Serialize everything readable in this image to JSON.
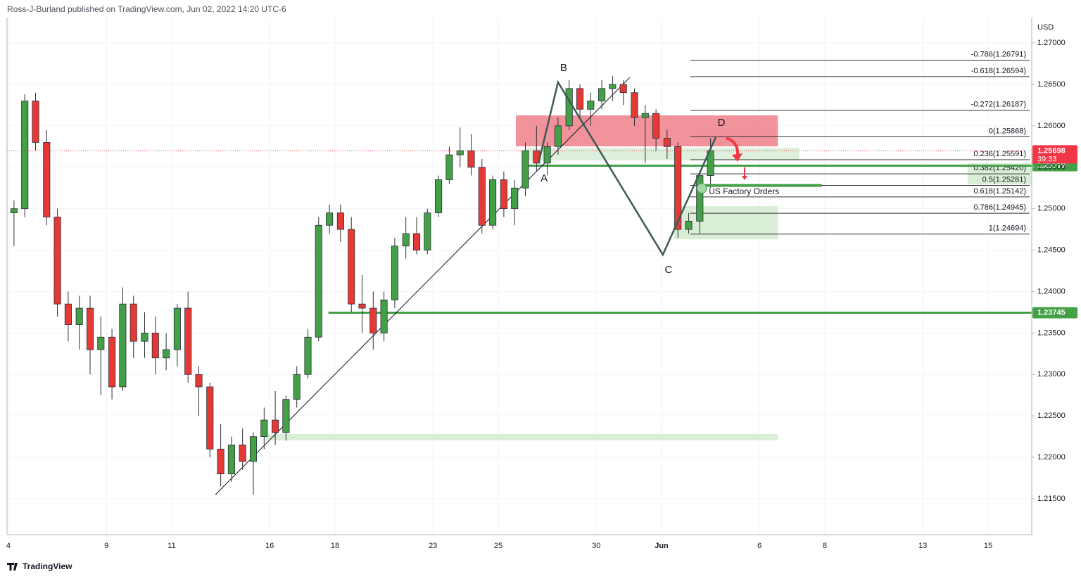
{
  "chart_data": {
    "type": "candlestick",
    "header": "Ross-J-Burland published on TradingView.com, Jun 02, 2022 14:20 UTC-6",
    "currency": "USD",
    "footer": "TradingView",
    "up_color": "#43a047",
    "down_color": "#e53935",
    "x": [
      0.17,
      0.5,
      0.83,
      1.17,
      1.5,
      1.83,
      2.17,
      2.5,
      2.83,
      3.17,
      3.5,
      3.83,
      4.17,
      4.5,
      4.83,
      5.17,
      5.5,
      5.83,
      6.17,
      6.5,
      6.83,
      7.17,
      7.5,
      7.83,
      8.17,
      8.5,
      8.83,
      9.17,
      9.5,
      9.83,
      10.17,
      10.5,
      10.83,
      11.17,
      11.5,
      11.83,
      12.17,
      12.5,
      12.83,
      13.17,
      13.5,
      13.83,
      14.17,
      14.5,
      14.83,
      15.17,
      15.5,
      15.83,
      16.17,
      16.5,
      16.83,
      17.17,
      17.5,
      17.83,
      18.17,
      18.5,
      18.83,
      19.17,
      19.5,
      19.83,
      20.17,
      20.5,
      20.83,
      21.17,
      21.5
    ],
    "candles": [
      [
        1.2495,
        1.251,
        1.2455,
        1.25
      ],
      [
        1.25,
        1.2638,
        1.249,
        1.263
      ],
      [
        1.263,
        1.264,
        1.257,
        1.258
      ],
      [
        1.258,
        1.2595,
        1.248,
        1.249
      ],
      [
        1.249,
        1.25,
        1.237,
        1.2385
      ],
      [
        1.2385,
        1.24,
        1.234,
        1.236
      ],
      [
        1.236,
        1.2395,
        1.233,
        1.238
      ],
      [
        1.238,
        1.2395,
        1.23,
        1.233
      ],
      [
        1.233,
        1.237,
        1.2275,
        1.2345
      ],
      [
        1.2345,
        1.2355,
        1.227,
        1.2285
      ],
      [
        1.2285,
        1.2405,
        1.228,
        1.2385
      ],
      [
        1.2385,
        1.2395,
        1.232,
        1.234
      ],
      [
        1.234,
        1.2375,
        1.232,
        1.235
      ],
      [
        1.235,
        1.237,
        1.23,
        1.232
      ],
      [
        1.232,
        1.235,
        1.2305,
        1.233
      ],
      [
        1.233,
        1.2385,
        1.231,
        1.238
      ],
      [
        1.238,
        1.24,
        1.229,
        1.23
      ],
      [
        1.23,
        1.231,
        1.225,
        1.2285
      ],
      [
        1.2285,
        1.229,
        1.22,
        1.221
      ],
      [
        1.221,
        1.224,
        1.2165,
        1.218
      ],
      [
        1.218,
        1.2225,
        1.217,
        1.2215
      ],
      [
        1.2215,
        1.2235,
        1.2185,
        1.2195
      ],
      [
        1.2195,
        1.223,
        1.2155,
        1.2225
      ],
      [
        1.2225,
        1.226,
        1.221,
        1.2245
      ],
      [
        1.2245,
        1.228,
        1.2215,
        1.223
      ],
      [
        1.223,
        1.2275,
        1.222,
        1.227
      ],
      [
        1.227,
        1.231,
        1.226,
        1.23
      ],
      [
        1.23,
        1.2355,
        1.2295,
        1.2345
      ],
      [
        1.2345,
        1.249,
        1.234,
        1.248
      ],
      [
        1.248,
        1.2505,
        1.247,
        1.2495
      ],
      [
        1.2495,
        1.2505,
        1.246,
        1.2475
      ],
      [
        1.2475,
        1.249,
        1.2375,
        1.2385
      ],
      [
        1.2385,
        1.242,
        1.235,
        1.238
      ],
      [
        1.238,
        1.24,
        1.233,
        1.235
      ],
      [
        1.235,
        1.24,
        1.234,
        1.239
      ],
      [
        1.239,
        1.2465,
        1.238,
        1.2455
      ],
      [
        1.2455,
        1.249,
        1.244,
        1.247
      ],
      [
        1.247,
        1.249,
        1.2445,
        1.245
      ],
      [
        1.245,
        1.25,
        1.2445,
        1.2495
      ],
      [
        1.2495,
        1.254,
        1.249,
        1.2535
      ],
      [
        1.2535,
        1.2575,
        1.253,
        1.2565
      ],
      [
        1.2565,
        1.2598,
        1.255,
        1.257
      ],
      [
        1.257,
        1.259,
        1.254,
        1.255
      ],
      [
        1.255,
        1.256,
        1.247,
        1.248
      ],
      [
        1.248,
        1.254,
        1.2475,
        1.2535
      ],
      [
        1.2535,
        1.2545,
        1.249,
        1.25
      ],
      [
        1.25,
        1.2535,
        1.248,
        1.2525
      ],
      [
        1.2525,
        1.258,
        1.2515,
        1.257
      ],
      [
        1.257,
        1.26,
        1.2545,
        1.2555
      ],
      [
        1.2555,
        1.258,
        1.254,
        1.2575
      ],
      [
        1.2575,
        1.261,
        1.2565,
        1.26
      ],
      [
        1.26,
        1.2655,
        1.2595,
        1.2645
      ],
      [
        1.2645,
        1.265,
        1.261,
        1.262
      ],
      [
        1.262,
        1.264,
        1.26,
        1.263
      ],
      [
        1.263,
        1.2655,
        1.262,
        1.2645
      ],
      [
        1.2645,
        1.266,
        1.263,
        1.265
      ],
      [
        1.265,
        1.2655,
        1.2625,
        1.264
      ],
      [
        1.264,
        1.2645,
        1.26,
        1.261
      ],
      [
        1.261,
        1.2625,
        1.2555,
        1.2615
      ],
      [
        1.2615,
        1.262,
        1.257,
        1.2585
      ],
      [
        1.2585,
        1.2595,
        1.256,
        1.2575
      ],
      [
        1.2575,
        1.258,
        1.2465,
        1.2475
      ],
      [
        1.2475,
        1.2495,
        1.247,
        1.2485
      ],
      [
        1.2485,
        1.2545,
        1.247,
        1.254
      ],
      [
        1.254,
        1.2585,
        1.2525,
        1.257
      ]
    ],
    "xlim": [
      -0.043,
      31.336
    ],
    "xticks": [
      {
        "value": 0,
        "label": "4"
      },
      {
        "value": 3,
        "label": "9"
      },
      {
        "value": 5,
        "label": "11"
      },
      {
        "value": 8,
        "label": "16"
      },
      {
        "value": 10,
        "label": "18"
      },
      {
        "value": 13,
        "label": "23"
      },
      {
        "value": 15,
        "label": "25"
      },
      {
        "value": 18,
        "label": "30"
      },
      {
        "value": 20,
        "label": "Jun"
      },
      {
        "value": 23,
        "label": "6"
      },
      {
        "value": 25,
        "label": "8"
      },
      {
        "value": 28,
        "label": "13"
      },
      {
        "value": 30,
        "label": "15"
      }
    ],
    "ylim": [
      1.21067,
      1.27306
    ],
    "yticks": [
      {
        "value": 1.27,
        "label": "1.27000"
      },
      {
        "value": 1.265,
        "label": "1.26500"
      },
      {
        "value": 1.26,
        "label": "1.26000"
      },
      {
        "value": 1.255,
        "label": "1.25500"
      },
      {
        "value": 1.25,
        "label": "1.25000"
      },
      {
        "value": 1.245,
        "label": "1.24500"
      },
      {
        "value": 1.24,
        "label": "1.24000"
      },
      {
        "value": 1.235,
        "label": "1.23500"
      },
      {
        "value": 1.23,
        "label": "1.23000"
      },
      {
        "value": 1.225,
        "label": "1.22500"
      },
      {
        "value": 1.22,
        "label": "1.22000"
      },
      {
        "value": 1.215,
        "label": "1.21500"
      }
    ],
    "grid": true,
    "last_price": 1.25698,
    "countdown": "39:33",
    "last_price_color": "#f23645",
    "fib_start": 20.88,
    "fib_levels": [
      {
        "label": "-0.786(1.26791)",
        "value": 1.26791
      },
      {
        "label": "-0.618(1.26594)",
        "value": 1.26594
      },
      {
        "label": "-0.272(1.26187)",
        "value": 1.26187
      },
      {
        "label": "0(1.25868)",
        "value": 1.25868
      },
      {
        "label": "0.236(1.25591)",
        "value": 1.25591
      },
      {
        "label": "0.382(1.25420)",
        "value": 1.2542
      },
      {
        "label": "0.5(1.25281)",
        "value": 1.25281
      },
      {
        "label": "0.618(1.25142)",
        "value": 1.25142
      },
      {
        "label": "0.786(1.24945)",
        "value": 1.24945
      },
      {
        "label": "1(1.24694)",
        "value": 1.24694
      }
    ],
    "hlines": [
      {
        "value": 1.25519,
        "start": 15.86,
        "color": "#43a047"
      },
      {
        "value": 1.23745,
        "start": 9.8,
        "color": "#43a047"
      }
    ],
    "zones": [
      {
        "x": [
          15.54,
          23.56
        ],
        "y": [
          1.26126,
          1.25752
        ],
        "color": "#f07f8a"
      },
      {
        "x": [
          15.8,
          24.22
        ],
        "y": [
          1.25735,
          1.25583
        ],
        "color": "#d8ecd6"
      },
      {
        "x": [
          20.37,
          23.56
        ],
        "y": [
          1.25031,
          1.24632
        ],
        "color": "#d3ebd0"
      },
      {
        "x": [
          7.89,
          23.56
        ],
        "y": [
          1.22281,
          1.22205
        ],
        "color": "#d3ebd0"
      },
      {
        "x": [
          29.37,
          31.336
        ],
        "y": [
          1.25549,
          1.25294
        ],
        "color": "#d3ebd0"
      }
    ],
    "pattern": {
      "labels": [
        "A",
        "B",
        "C",
        "D"
      ],
      "x": [
        16.23,
        16.83,
        20.04,
        21.66
      ],
      "y": [
        1.25548,
        1.26525,
        1.24445,
        1.25863
      ],
      "color": "#3d5a55"
    },
    "trendline": {
      "x": [
        6.34,
        19.03
      ],
      "y": [
        1.21551,
        1.26584
      ]
    },
    "annotation": {
      "text": "US Factory Orders",
      "x": 21.19,
      "x_end": 24.91,
      "y": 1.2528,
      "color": "#43a047"
    }
  }
}
